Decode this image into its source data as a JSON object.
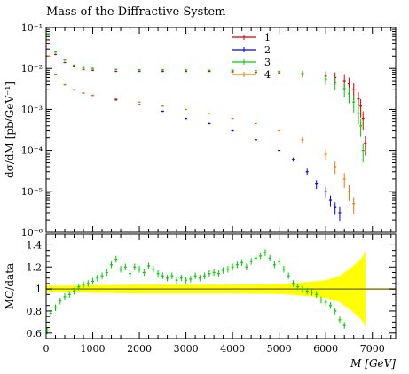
{
  "chart_data": [
    {
      "type": "scatter",
      "title": "Mass of the Diffractive System",
      "ylabel": "dσ/dM [pb/GeV⁻¹]",
      "xlabel": "",
      "xlim": [
        0,
        7500
      ],
      "ylim": [
        1e-06,
        0.1
      ],
      "yscale": "log",
      "x_ticks": [
        0,
        1000,
        2000,
        3000,
        4000,
        5000,
        6000,
        7000
      ],
      "y_ticks": [
        {
          "value": 1e-06,
          "label": "10⁻⁶"
        },
        {
          "value": 1e-05,
          "label": "10⁻⁵"
        },
        {
          "value": 0.0001,
          "label": "10⁻⁴"
        },
        {
          "value": 0.001,
          "label": "10⁻³"
        },
        {
          "value": 0.01,
          "label": "10⁻²"
        },
        {
          "value": 0.1,
          "label": "10⁻¹"
        }
      ],
      "legend_position": "top-right",
      "series": [
        {
          "name": "1",
          "color": "#d40000",
          "x": [
            50,
            200,
            400,
            600,
            800,
            1000,
            1500,
            2000,
            2500,
            3000,
            3500,
            4000,
            4500,
            5000,
            5500,
            6000,
            6200,
            6400,
            6500,
            6600,
            6700,
            6750,
            6800,
            6850
          ],
          "y": [
            0.04,
            0.022,
            0.014,
            0.011,
            0.0095,
            0.009,
            0.0085,
            0.0085,
            0.0085,
            0.0085,
            0.0085,
            0.0083,
            0.008,
            0.0078,
            0.0072,
            0.0065,
            0.006,
            0.005,
            0.0042,
            0.003,
            0.0018,
            0.0012,
            0.0006,
            0.00015
          ]
        },
        {
          "name": "2",
          "color": "#0000ee",
          "x": [
            50,
            200,
            400,
            600,
            800,
            1000,
            1500,
            2000,
            2500,
            3000,
            3500,
            4000,
            4500,
            5000,
            5300,
            5600,
            5800,
            6000,
            6100,
            6200,
            6300
          ],
          "y": [
            0.02,
            0.007,
            0.004,
            0.003,
            0.0025,
            0.0022,
            0.0017,
            0.0013,
            0.0009,
            0.0006,
            0.00045,
            0.0003,
            0.00018,
            0.0001,
            6e-05,
            3e-05,
            1.5e-05,
            1e-05,
            6e-06,
            4e-06,
            3e-06
          ]
        },
        {
          "name": "3",
          "color": "#00cc00",
          "x": [
            50,
            200,
            400,
            600,
            800,
            1000,
            1500,
            2000,
            2500,
            3000,
            3500,
            4000,
            4500,
            5000,
            5500,
            6000,
            6200,
            6400,
            6500,
            6600,
            6700,
            6750,
            6800
          ],
          "y": [
            0.07,
            0.025,
            0.016,
            0.012,
            0.0105,
            0.01,
            0.0095,
            0.0093,
            0.0093,
            0.0092,
            0.009,
            0.009,
            0.0088,
            0.0085,
            0.0075,
            0.0055,
            0.0045,
            0.0032,
            0.0024,
            0.0015,
            0.0008,
            0.0004,
            0.0001
          ]
        },
        {
          "name": "4",
          "color": "#ee7700",
          "x": [
            50,
            200,
            400,
            600,
            800,
            1000,
            1500,
            2000,
            2500,
            3000,
            3500,
            4000,
            4500,
            5000,
            5500,
            6000,
            6200,
            6400,
            6500,
            6600
          ],
          "y": [
            0.02,
            0.007,
            0.004,
            0.003,
            0.0025,
            0.0022,
            0.0018,
            0.0015,
            0.0012,
            0.001,
            0.0008,
            0.0006,
            0.00045,
            0.0003,
            0.00018,
            8e-05,
            4e-05,
            2e-05,
            1e-05,
            5e-06
          ]
        }
      ]
    },
    {
      "type": "scatter",
      "title": "",
      "ylabel": "MC/data",
      "xlabel": "M [GeV]",
      "xlim": [
        0,
        7500
      ],
      "ylim": [
        0.55,
        1.5
      ],
      "x_ticks": [
        0,
        1000,
        2000,
        3000,
        4000,
        5000,
        6000,
        7000
      ],
      "y_ticks": [
        {
          "value": 0.6,
          "label": "0.6"
        },
        {
          "value": 0.8,
          "label": "0.8"
        },
        {
          "value": 1.0,
          "label": "1"
        },
        {
          "value": 1.2,
          "label": "1.2"
        },
        {
          "value": 1.4,
          "label": "1.4"
        }
      ],
      "reference_line": 1.0,
      "band_color": "#ffff00",
      "line_color": "#808000",
      "band": {
        "x": [
          0,
          500,
          1000,
          2000,
          3000,
          4000,
          5000,
          5500,
          6000,
          6300,
          6500,
          6700,
          6800,
          6850
        ],
        "half_width": [
          0.03,
          0.03,
          0.035,
          0.04,
          0.04,
          0.04,
          0.045,
          0.06,
          0.08,
          0.12,
          0.18,
          0.25,
          0.3,
          0.35
        ]
      },
      "series": [
        {
          "name": "3",
          "color": "#00cc00",
          "x": [
            20,
            100,
            200,
            300,
            400,
            500,
            600,
            700,
            800,
            900,
            1000,
            1100,
            1200,
            1300,
            1400,
            1500,
            1600,
            1700,
            1800,
            1900,
            2000,
            2100,
            2200,
            2300,
            2400,
            2500,
            2600,
            2700,
            2800,
            2900,
            3000,
            3100,
            3200,
            3300,
            3400,
            3500,
            3600,
            3700,
            3800,
            3900,
            4000,
            4100,
            4200,
            4300,
            4400,
            4500,
            4600,
            4700,
            4800,
            4900,
            5000,
            5100,
            5200,
            5300,
            5400,
            5500,
            5600,
            5700,
            5800,
            5900,
            6000,
            6100,
            6200,
            6300,
            6400
          ],
          "y": [
            0.62,
            0.78,
            0.83,
            0.89,
            0.93,
            0.95,
            0.98,
            1.02,
            1.04,
            1.05,
            1.07,
            1.1,
            1.12,
            1.15,
            1.22,
            1.27,
            1.18,
            1.2,
            1.14,
            1.2,
            1.18,
            1.15,
            1.21,
            1.18,
            1.14,
            1.12,
            1.1,
            1.12,
            1.08,
            1.1,
            1.08,
            1.09,
            1.12,
            1.1,
            1.12,
            1.14,
            1.15,
            1.14,
            1.17,
            1.18,
            1.2,
            1.22,
            1.24,
            1.2,
            1.25,
            1.28,
            1.3,
            1.33,
            1.28,
            1.22,
            1.25,
            1.18,
            1.12,
            1.05,
            1.02,
            1.0,
            0.98,
            0.97,
            0.95,
            0.9,
            0.88,
            0.85,
            0.8,
            0.72,
            0.67
          ]
        }
      ]
    }
  ]
}
